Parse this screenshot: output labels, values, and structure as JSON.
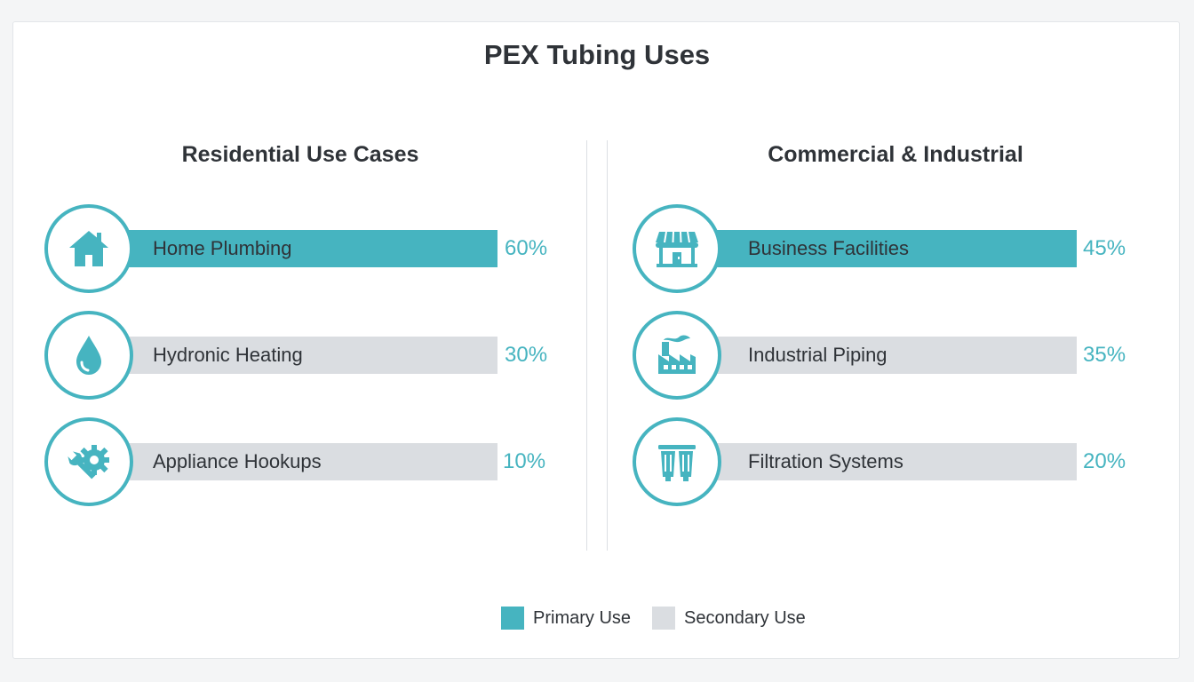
{
  "chart_data": {
    "type": "bar",
    "title": "PEX Tubing Uses",
    "max_value": 100,
    "panels": [
      {
        "title": "Residential Use Cases",
        "items": [
          {
            "label": "Home Plumbing",
            "value": 60,
            "value_label": "60%",
            "category": "primary",
            "icon": "house-icon"
          },
          {
            "label": "Hydronic Heating",
            "value": 30,
            "value_label": "30%",
            "category": "secondary",
            "icon": "water-drop-icon"
          },
          {
            "label": "Appliance Hookups",
            "value": 10,
            "value_label": "10%",
            "category": "secondary",
            "icon": "wrench-gear-icon"
          }
        ]
      },
      {
        "title": "Commercial & Industrial",
        "items": [
          {
            "label": "Business Facilities",
            "value": 45,
            "value_label": "45%",
            "category": "primary",
            "icon": "storefront-icon"
          },
          {
            "label": "Industrial Piping",
            "value": 35,
            "value_label": "35%",
            "category": "secondary",
            "icon": "factory-icon"
          },
          {
            "label": "Filtration Systems",
            "value": 20,
            "value_label": "20%",
            "category": "secondary",
            "icon": "filter-icon"
          }
        ]
      }
    ],
    "legend": [
      {
        "label": "Primary Use",
        "color": "#46b4c0"
      },
      {
        "label": "Secondary Use",
        "color": "#dadde1"
      }
    ],
    "legend_position": "bottom-center",
    "colors": {
      "accent": "#46b4c0",
      "secondary": "#dadde1"
    }
  }
}
